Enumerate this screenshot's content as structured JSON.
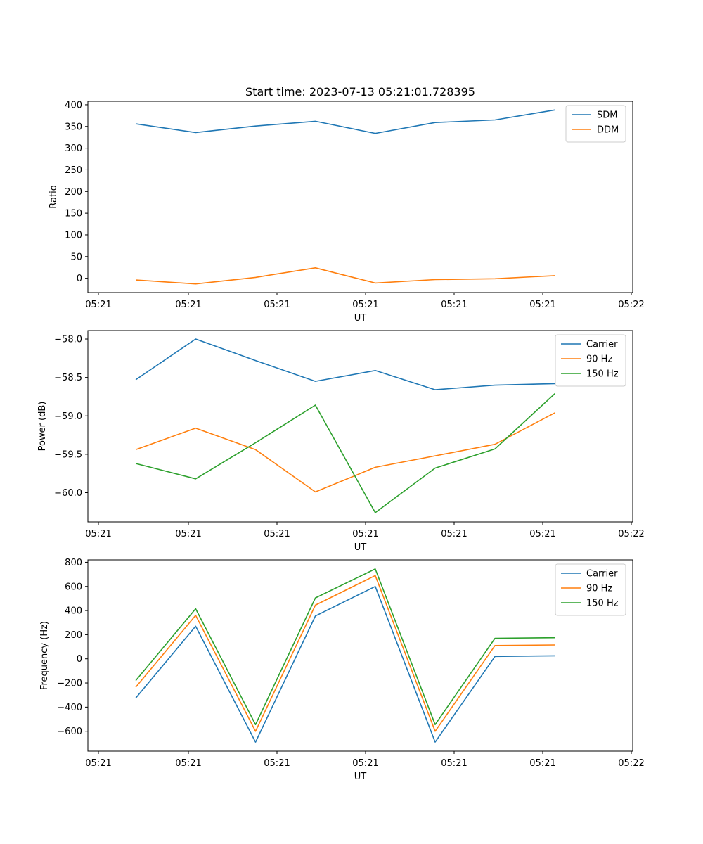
{
  "figure_title": "Start time: 2023-07-13 05:21:01.728395",
  "chart_data": [
    {
      "type": "line",
      "title": "Start time: 2023-07-13 05:21:01.728395",
      "xlabel": "UT",
      "ylabel": "Ratio",
      "x_tick_labels": [
        "05:21",
        "05:21",
        "05:21",
        "05:21",
        "05:21",
        "05:21",
        "05:22"
      ],
      "x": [
        1,
        2,
        3,
        4,
        5,
        6,
        7,
        8
      ],
      "xlim": [
        0.2,
        9.3
      ],
      "ylim": [
        -33,
        408
      ],
      "y_ticks": [
        0,
        50,
        100,
        150,
        200,
        250,
        300,
        350,
        400
      ],
      "legend_position": "top-right",
      "series": [
        {
          "name": "SDM",
          "color": "#1f77b4",
          "values": [
            356,
            336,
            351,
            362,
            334,
            359,
            365,
            388
          ]
        },
        {
          "name": "DDM",
          "color": "#ff7f0e",
          "values": [
            -4,
            -13,
            2,
            24,
            -11,
            -3,
            -1,
            6
          ]
        }
      ]
    },
    {
      "type": "line",
      "xlabel": "UT",
      "ylabel": "Power (dB)",
      "x_tick_labels": [
        "05:21",
        "05:21",
        "05:21",
        "05:21",
        "05:21",
        "05:21",
        "05:22"
      ],
      "x": [
        1,
        2,
        3,
        4,
        5,
        6,
        7,
        8
      ],
      "xlim": [
        0.2,
        9.3
      ],
      "ylim": [
        -60.38,
        -57.89
      ],
      "y_ticks": [
        -60.0,
        -59.5,
        -59.0,
        -58.5,
        -58.0
      ],
      "legend_position": "top-right",
      "series": [
        {
          "name": "Carrier",
          "color": "#1f77b4",
          "values": [
            -58.53,
            -58.0,
            -58.28,
            -58.55,
            -58.41,
            -58.66,
            -58.6,
            -58.58
          ]
        },
        {
          "name": "90 Hz",
          "color": "#ff7f0e",
          "values": [
            -59.44,
            -59.16,
            -59.44,
            -59.99,
            -59.67,
            -59.52,
            -59.37,
            -58.96
          ]
        },
        {
          "name": "150 Hz",
          "color": "#2ca02c",
          "values": [
            -59.62,
            -59.82,
            -59.35,
            -58.86,
            -60.26,
            -59.68,
            -59.43,
            -58.71
          ]
        }
      ]
    },
    {
      "type": "line",
      "xlabel": "UT",
      "ylabel": "Frequency (Hz)",
      "x_tick_labels": [
        "05:21",
        "05:21",
        "05:21",
        "05:21",
        "05:21",
        "05:21",
        "05:22"
      ],
      "x": [
        1,
        2,
        3,
        4,
        5,
        6,
        7,
        8
      ],
      "xlim": [
        0.2,
        9.3
      ],
      "ylim": [
        -765,
        820
      ],
      "y_ticks": [
        -600,
        -400,
        -200,
        0,
        200,
        400,
        600,
        800
      ],
      "legend_position": "top-right",
      "series": [
        {
          "name": "Carrier",
          "color": "#1f77b4",
          "values": [
            -325,
            270,
            -690,
            355,
            600,
            -690,
            20,
            25
          ]
        },
        {
          "name": "90 Hz",
          "color": "#ff7f0e",
          "values": [
            -235,
            360,
            -600,
            445,
            690,
            -600,
            110,
            115
          ]
        },
        {
          "name": "150 Hz",
          "color": "#2ca02c",
          "values": [
            -180,
            415,
            -545,
            505,
            745,
            -545,
            170,
            175
          ]
        }
      ]
    }
  ]
}
